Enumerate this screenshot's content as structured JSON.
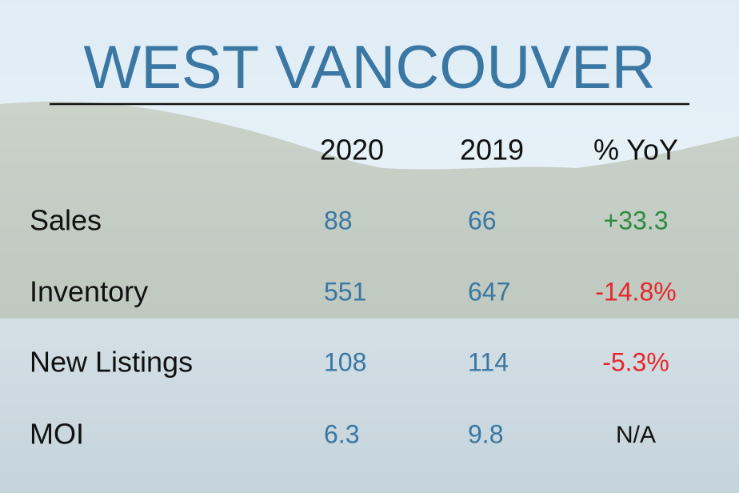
{
  "title": "WEST VANCOUVER",
  "table": {
    "columns": [
      "2020",
      "2019",
      "% YoY"
    ],
    "rows": [
      {
        "label": "Sales",
        "cells": [
          "88",
          "66",
          "+33.3"
        ],
        "change_color": "#2e8b3e"
      },
      {
        "label": "Inventory",
        "cells": [
          "551",
          "647",
          "-14.8%"
        ],
        "change_color": "#e8262a"
      },
      {
        "label": "New Listings",
        "cells": [
          "108",
          "114",
          "-5.3%"
        ],
        "change_color": "#e8262a"
      },
      {
        "label": "MOI",
        "cells": [
          "6.3",
          "9.8",
          "N/A"
        ],
        "change_color": "#111111"
      }
    ]
  }
}
